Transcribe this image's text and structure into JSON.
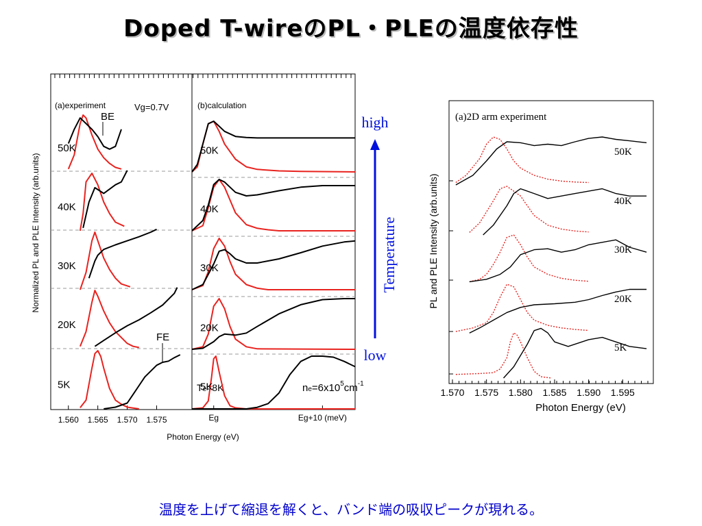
{
  "slide": {
    "title": "Doped T-wireのPL・PLEの温度依存性",
    "caption": "温度を上げて縮退を解くと、バンド端の吸収ピークが現れる。"
  },
  "colors": {
    "pl": "#e8221e",
    "ple": "#000000",
    "arrow": "#0011dd",
    "guide": "#999999"
  },
  "chart_data": [
    {
      "id": "experiment",
      "type": "line",
      "panel_label": "(a)experiment",
      "annotations": [
        "Vg=0.7V",
        "BE",
        "FE"
      ],
      "xlabel": "Photon Energy (eV)",
      "ylabel": "Normalized PL and PLE Intensity (arb.units)",
      "xticks": [
        "1.560",
        "1.565",
        "1.570",
        "1.575"
      ],
      "xlim": [
        1.557,
        1.581
      ],
      "temperatures": [
        "5K",
        "20K",
        "30K",
        "40K",
        "50K"
      ],
      "series": [
        {
          "temp": "5K",
          "kind": "PL",
          "x": [
            1.562,
            1.563,
            1.564,
            1.5645,
            1.565,
            1.5655,
            1.566,
            1.567,
            1.568,
            1.569,
            1.57,
            1.572
          ],
          "y": [
            0.02,
            0.15,
            0.7,
            0.95,
            1.0,
            0.9,
            0.7,
            0.35,
            0.15,
            0.08,
            0.03,
            0.0
          ]
        },
        {
          "temp": "5K",
          "kind": "PLE",
          "x": [
            1.566,
            1.568,
            1.57,
            1.571,
            1.572,
            1.573,
            1.574,
            1.575,
            1.576,
            1.577,
            1.578,
            1.579
          ],
          "y": [
            0.0,
            0.03,
            0.1,
            0.25,
            0.4,
            0.55,
            0.65,
            0.75,
            0.8,
            0.82,
            0.88,
            0.93
          ]
        },
        {
          "temp": "20K",
          "kind": "PL",
          "x": [
            1.562,
            1.563,
            1.564,
            1.5645,
            1.565,
            1.566,
            1.567,
            1.568,
            1.569,
            1.57,
            1.571,
            1.572
          ],
          "y": [
            0.05,
            0.3,
            0.8,
            1.0,
            0.9,
            0.65,
            0.45,
            0.3,
            0.2,
            0.1,
            0.05,
            0.03
          ]
        },
        {
          "temp": "20K",
          "kind": "PLE",
          "x": [
            1.5645,
            1.566,
            1.568,
            1.57,
            1.572,
            1.574,
            1.576,
            1.578,
            1.5785
          ],
          "y": [
            0.05,
            0.15,
            0.28,
            0.4,
            0.5,
            0.62,
            0.75,
            0.95,
            1.05
          ]
        },
        {
          "temp": "30K",
          "kind": "PL",
          "x": [
            1.562,
            1.563,
            1.564,
            1.5645,
            1.565,
            1.566,
            1.567,
            1.568,
            1.569,
            1.5705
          ],
          "y": [
            0.0,
            0.3,
            0.85,
            1.0,
            0.85,
            0.55,
            0.35,
            0.2,
            0.1,
            0.05
          ]
        },
        {
          "temp": "30K",
          "kind": "PLE",
          "x": [
            1.5635,
            1.5645,
            1.565,
            1.566,
            1.568,
            1.57,
            1.572,
            1.574,
            1.575
          ],
          "y": [
            0.2,
            0.5,
            0.6,
            0.7,
            0.78,
            0.85,
            0.92,
            1.0,
            1.05
          ]
        },
        {
          "temp": "40K",
          "kind": "PL",
          "x": [
            1.562,
            1.5625,
            1.563,
            1.564,
            1.565,
            1.566,
            1.567,
            1.568,
            1.5695
          ],
          "y": [
            0.0,
            0.3,
            0.85,
            1.0,
            0.8,
            0.5,
            0.3,
            0.15,
            0.08
          ]
        },
        {
          "temp": "40K",
          "kind": "PLE",
          "x": [
            1.5625,
            1.5635,
            1.5645,
            1.566,
            1.568,
            1.569,
            1.57
          ],
          "y": [
            0.05,
            0.5,
            0.75,
            0.65,
            0.8,
            0.85,
            1.05
          ]
        },
        {
          "temp": "50K",
          "kind": "PL",
          "x": [
            1.56,
            1.561,
            1.562,
            1.5625,
            1.563,
            1.564,
            1.565,
            1.566,
            1.567,
            1.568,
            1.569
          ],
          "y": [
            0.05,
            0.3,
            0.85,
            1.0,
            0.95,
            0.65,
            0.4,
            0.25,
            0.15,
            0.08,
            0.05
          ]
        },
        {
          "temp": "50K",
          "kind": "PLE",
          "x": [
            1.56,
            1.561,
            1.562,
            1.563,
            1.564,
            1.565,
            1.566,
            1.567,
            1.568,
            1.569
          ],
          "y": [
            0.5,
            0.75,
            0.95,
            0.85,
            0.75,
            0.62,
            0.45,
            0.4,
            0.45,
            0.75
          ]
        }
      ]
    },
    {
      "id": "calculation",
      "type": "line",
      "panel_label": "(b)calculation",
      "annotations": [
        "Te=8K",
        "ne=6x10^5cm^-1"
      ],
      "te_label": {
        "T": "T",
        "sub": "e",
        "rest": "=8K"
      },
      "ne_label": {
        "n": "n",
        "sub": "e",
        "mid": "=6x10",
        "sup": "5",
        "unit": "cm",
        "unit_sup": "-1"
      },
      "xticks": [
        "Eg",
        "Eg+10 (meV)"
      ],
      "xlim": [
        -2,
        13
      ],
      "temperatures": [
        "5K",
        "20K",
        "30K",
        "40K",
        "50K"
      ],
      "series": [
        {
          "temp": "5K",
          "kind": "PL",
          "x": [
            -2,
            -1,
            -0.5,
            -0.2,
            0,
            0.2,
            0.5,
            1,
            1.5,
            2,
            3,
            13
          ],
          "y": [
            0,
            0.02,
            0.15,
            0.6,
            0.95,
            1.0,
            0.7,
            0.25,
            0.06,
            0.02,
            0,
            0
          ]
        },
        {
          "temp": "5K",
          "kind": "PLE",
          "x": [
            -2,
            3,
            4,
            5,
            6,
            7,
            8,
            9,
            10,
            11,
            12,
            13
          ],
          "y": [
            0,
            0,
            0.03,
            0.1,
            0.3,
            0.65,
            0.9,
            1.0,
            1.0,
            0.98,
            0.9,
            0.8
          ]
        },
        {
          "temp": "20K",
          "kind": "PL",
          "x": [
            -2,
            -1,
            -0.5,
            0,
            0.5,
            1,
            1.5,
            2,
            3,
            4,
            13
          ],
          "y": [
            0,
            0.05,
            0.3,
            0.85,
            1.0,
            0.8,
            0.45,
            0.2,
            0.05,
            0.01,
            0
          ]
        },
        {
          "temp": "20K",
          "kind": "PLE",
          "x": [
            -2,
            -1,
            0,
            0.5,
            1,
            2,
            3,
            4,
            6,
            8,
            10,
            12,
            13
          ],
          "y": [
            0,
            0.02,
            0.15,
            0.25,
            0.3,
            0.28,
            0.32,
            0.45,
            0.7,
            0.88,
            0.98,
            1.0,
            1.0
          ]
        },
        {
          "temp": "30K",
          "kind": "PL",
          "x": [
            -2,
            -1,
            -0.5,
            0,
            0.5,
            1,
            1.5,
            2,
            3,
            4,
            5,
            13
          ],
          "y": [
            0,
            0.08,
            0.35,
            0.8,
            1.0,
            0.85,
            0.55,
            0.3,
            0.1,
            0.03,
            0,
            0
          ]
        },
        {
          "temp": "30K",
          "kind": "PLE",
          "x": [
            -2,
            -1,
            0,
            0.5,
            1,
            1.5,
            2,
            3,
            4,
            6,
            8,
            10,
            12,
            13
          ],
          "y": [
            0,
            0.1,
            0.5,
            0.75,
            0.78,
            0.7,
            0.6,
            0.52,
            0.52,
            0.6,
            0.72,
            0.85,
            0.93,
            0.95
          ]
        },
        {
          "temp": "40K",
          "kind": "PL",
          "x": [
            -2,
            -1,
            -0.5,
            0,
            0.5,
            1,
            1.5,
            2,
            3,
            4,
            5,
            6,
            13
          ],
          "y": [
            0,
            0.1,
            0.45,
            0.85,
            1.0,
            0.85,
            0.6,
            0.35,
            0.12,
            0.05,
            0.02,
            0,
            0
          ]
        },
        {
          "temp": "40K",
          "kind": "PLE",
          "x": [
            -2,
            -1,
            -0.5,
            0,
            0.5,
            1,
            1.5,
            2,
            3,
            4,
            6,
            8,
            10,
            12,
            13
          ],
          "y": [
            0,
            0.2,
            0.5,
            0.9,
            1.0,
            0.95,
            0.85,
            0.75,
            0.68,
            0.7,
            0.78,
            0.85,
            0.88,
            0.88,
            0.88
          ]
        },
        {
          "temp": "50K",
          "kind": "PL",
          "x": [
            -2,
            -1.5,
            -1,
            -0.5,
            0,
            0.5,
            1,
            2,
            3,
            4,
            6,
            8,
            13
          ],
          "y": [
            0,
            0.1,
            0.55,
            0.95,
            1.0,
            0.8,
            0.55,
            0.25,
            0.1,
            0.05,
            0.02,
            0.01,
            0
          ]
        },
        {
          "temp": "50K",
          "kind": "PLE",
          "x": [
            -2,
            -1.5,
            -1,
            -0.5,
            0,
            0.5,
            1,
            2,
            3,
            4,
            6,
            8,
            10,
            13
          ],
          "y": [
            0,
            0.15,
            0.55,
            0.95,
            1.0,
            0.9,
            0.8,
            0.7,
            0.68,
            0.67,
            0.67,
            0.67,
            0.67,
            0.67
          ]
        }
      ]
    },
    {
      "id": "arm-experiment",
      "type": "line",
      "panel_label": "(a)2D arm experiment",
      "xlabel": "Photon Energy (eV)",
      "ylabel": "PL and PLE Intensity (arb.units)",
      "xticks": [
        "1.570",
        "1.575",
        "1.580",
        "1.585",
        "1.590",
        "1.595"
      ],
      "xlim": [
        1.5695,
        1.5995
      ],
      "temperatures": [
        "5K",
        "20K",
        "30K",
        "40K",
        "50K"
      ],
      "series": [
        {
          "temp": "5K",
          "kind": "PL",
          "x": [
            1.5705,
            1.574,
            1.576,
            1.577,
            1.578,
            1.5785,
            1.579,
            1.5795,
            1.58,
            1.581,
            1.582,
            1.583,
            1.5845
          ],
          "y": [
            0.08,
            0.1,
            0.12,
            0.2,
            0.45,
            0.8,
            1.0,
            0.95,
            0.8,
            0.45,
            0.15,
            0.03,
            0.0
          ]
        },
        {
          "temp": "5K",
          "kind": "PLE",
          "x": [
            1.5775,
            1.579,
            1.58,
            1.581,
            1.582,
            1.583,
            1.584,
            1.585,
            1.587,
            1.59,
            1.592,
            1.594,
            1.596,
            1.5985
          ],
          "y": [
            0.0,
            0.25,
            0.5,
            0.75,
            1.05,
            1.1,
            1.0,
            0.8,
            0.7,
            0.85,
            0.9,
            0.8,
            0.7,
            0.65
          ]
        },
        {
          "temp": "20K",
          "kind": "PL",
          "x": [
            1.5705,
            1.573,
            1.575,
            1.576,
            1.577,
            1.578,
            1.579,
            1.58,
            1.581,
            1.582,
            1.584,
            1.586,
            1.588,
            1.59
          ],
          "y": [
            0.08,
            0.15,
            0.25,
            0.45,
            0.75,
            1.0,
            0.95,
            0.7,
            0.45,
            0.3,
            0.2,
            0.15,
            0.12,
            0.1
          ]
        },
        {
          "temp": "20K",
          "kind": "PLE",
          "x": [
            1.5725,
            1.574,
            1.576,
            1.578,
            1.58,
            1.582,
            1.585,
            1.588,
            1.59,
            1.592,
            1.594,
            1.596,
            1.5985
          ],
          "y": [
            0.05,
            0.15,
            0.3,
            0.45,
            0.55,
            0.6,
            0.62,
            0.65,
            0.7,
            0.78,
            0.85,
            0.9,
            0.9
          ]
        },
        {
          "temp": "30K",
          "kind": "PL",
          "x": [
            1.5725,
            1.574,
            1.575,
            1.576,
            1.577,
            1.578,
            1.579,
            1.58,
            1.581,
            1.582,
            1.584,
            1.586,
            1.588,
            1.59
          ],
          "y": [
            0.05,
            0.1,
            0.2,
            0.4,
            0.65,
            0.95,
            1.0,
            0.8,
            0.55,
            0.35,
            0.2,
            0.12,
            0.08,
            0.06
          ]
        },
        {
          "temp": "30K",
          "kind": "PLE",
          "x": [
            1.5725,
            1.575,
            1.577,
            1.5785,
            1.58,
            1.582,
            1.584,
            1.586,
            1.588,
            1.59,
            1.592,
            1.594,
            1.596,
            1.5985
          ],
          "y": [
            0.05,
            0.1,
            0.2,
            0.35,
            0.6,
            0.7,
            0.72,
            0.65,
            0.7,
            0.8,
            0.85,
            0.9,
            0.75,
            0.65
          ]
        },
        {
          "temp": "40K",
          "kind": "PL",
          "x": [
            1.5725,
            1.574,
            1.576,
            1.577,
            1.578,
            1.579,
            1.58,
            1.581,
            1.582,
            1.584,
            1.586,
            1.588,
            1.59
          ],
          "y": [
            0.05,
            0.25,
            0.7,
            0.95,
            1.0,
            0.9,
            0.8,
            0.6,
            0.4,
            0.2,
            0.12,
            0.08,
            0.06
          ]
        },
        {
          "temp": "40K",
          "kind": "PLE",
          "x": [
            1.5745,
            1.576,
            1.578,
            1.579,
            1.58,
            1.582,
            1.584,
            1.586,
            1.588,
            1.59,
            1.592,
            1.594,
            1.596,
            1.5985
          ],
          "y": [
            0.0,
            0.2,
            0.6,
            0.85,
            0.95,
            0.85,
            0.75,
            0.8,
            0.85,
            0.9,
            0.95,
            0.85,
            0.8,
            0.8
          ]
        },
        {
          "temp": "50K",
          "kind": "PL",
          "x": [
            1.5705,
            1.572,
            1.574,
            1.575,
            1.576,
            1.577,
            1.578,
            1.579,
            1.58,
            1.582,
            1.584,
            1.586,
            1.588,
            1.59
          ],
          "y": [
            0.05,
            0.2,
            0.55,
            0.85,
            1.0,
            0.95,
            0.75,
            0.5,
            0.35,
            0.2,
            0.12,
            0.08,
            0.06,
            0.05
          ]
        },
        {
          "temp": "50K",
          "kind": "PLE",
          "x": [
            1.5705,
            1.573,
            1.575,
            1.5765,
            1.578,
            1.58,
            1.582,
            1.584,
            1.586,
            1.588,
            1.59,
            1.592,
            1.594,
            1.596,
            1.5985
          ],
          "y": [
            0.0,
            0.2,
            0.5,
            0.75,
            0.9,
            0.88,
            0.82,
            0.85,
            0.82,
            0.9,
            0.97,
            1.0,
            0.95,
            0.92,
            0.88
          ]
        }
      ]
    },
    {
      "id": "temperature-arrow",
      "type": "annotation",
      "top_label": "high",
      "bottom_label": "low",
      "axis_label": "Temperature"
    }
  ]
}
